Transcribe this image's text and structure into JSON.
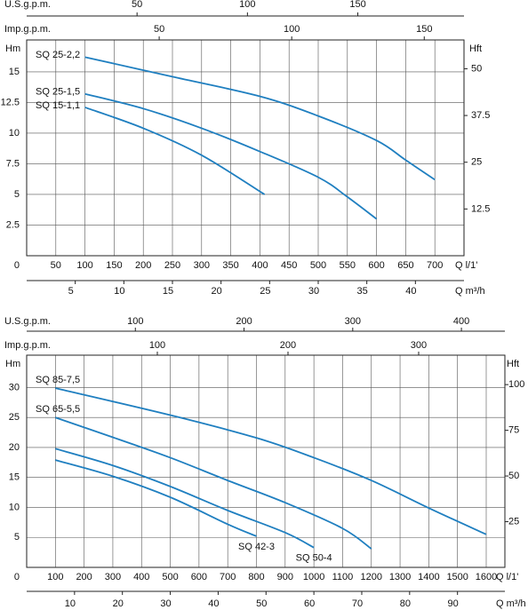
{
  "chart_data": [
    {
      "type": "line",
      "ylabel": "Hm",
      "y2label": "Hft",
      "xlabel": "Q l/1'",
      "xlim": [
        0,
        750
      ],
      "xticks": [
        50,
        100,
        150,
        200,
        250,
        300,
        350,
        400,
        450,
        500,
        550,
        600,
        650,
        700
      ],
      "ylim": [
        0,
        17.6
      ],
      "yticks": [
        0,
        2.5,
        5,
        7.5,
        10,
        12.5,
        15
      ],
      "y2lim": [
        0,
        57.7
      ],
      "y2ticks": [
        12.5,
        25,
        37.5,
        50
      ],
      "grid": true,
      "top_axes": [
        {
          "label": "U.S.g.p.m.",
          "xlim": [
            0,
            198.1
          ],
          "xticks": [
            50,
            100,
            150
          ]
        },
        {
          "label": "Imp.g.p.m.",
          "xlim": [
            0,
            165
          ],
          "xticks": [
            50,
            100,
            150
          ]
        }
      ],
      "bottom_axis2": {
        "label": "Q m³/h",
        "xlim": [
          0,
          45
        ],
        "xticks": [
          5,
          10,
          15,
          20,
          25,
          30,
          35,
          40
        ]
      },
      "series": [
        {
          "name": "SQ 25-2,2",
          "color": "#1f7fc0",
          "x": [
            100,
            250,
            400,
            500,
            600,
            650,
            700
          ],
          "values": [
            16.2,
            14.6,
            13.0,
            11.4,
            9.4,
            7.8,
            6.2
          ]
        },
        {
          "name": "SQ 25-1,5",
          "color": "#1f7fc0",
          "x": [
            100,
            200,
            300,
            400,
            500,
            550,
            600
          ],
          "values": [
            13.2,
            12.0,
            10.4,
            8.5,
            6.4,
            4.8,
            3.0
          ]
        },
        {
          "name": "SQ 15-1,1",
          "color": "#1f7fc0",
          "x": [
            100,
            200,
            300,
            408
          ],
          "values": [
            12.1,
            10.4,
            8.2,
            5.0
          ]
        }
      ]
    },
    {
      "type": "line",
      "ylabel": "Hm",
      "y2label": "Hft",
      "xlabel": "Q l/1'",
      "xlim": [
        0,
        1665
      ],
      "xticks": [
        100,
        200,
        300,
        400,
        500,
        600,
        700,
        800,
        900,
        1000,
        1100,
        1200,
        1300,
        1400,
        1500,
        1600
      ],
      "ylim": [
        0,
        35.4
      ],
      "yticks": [
        0,
        5,
        10,
        15,
        20,
        25,
        30
      ],
      "y2lim": [
        0,
        116.1
      ],
      "y2ticks": [
        25,
        50,
        75,
        100
      ],
      "grid": true,
      "top_axes": [
        {
          "label": "U.S.g.p.m.",
          "xlim": [
            0,
            440
          ],
          "xticks": [
            100,
            200,
            300,
            400
          ]
        },
        {
          "label": "Imp.g.p.m.",
          "xlim": [
            0,
            366
          ],
          "xticks": [
            100,
            200,
            300
          ]
        }
      ],
      "bottom_axis2": {
        "label": "Q m³/h",
        "xlim": [
          0,
          99.9
        ],
        "xticks": [
          10,
          20,
          30,
          40,
          50,
          60,
          70,
          80,
          90
        ]
      },
      "series": [
        {
          "name": "SQ 85-7,5",
          "color": "#1f7fc0",
          "x": [
            100,
            500,
            800,
            1000,
            1200,
            1400,
            1600
          ],
          "values": [
            29.9,
            25.4,
            21.6,
            18.3,
            14.5,
            9.9,
            5.5
          ]
        },
        {
          "name": "SQ 65-5,5",
          "color": "#1f7fc0",
          "x": [
            100,
            300,
            500,
            700,
            900,
            1100,
            1200
          ],
          "values": [
            25.0,
            21.7,
            18.3,
            14.5,
            10.8,
            6.5,
            3.1
          ]
        },
        {
          "name": "SQ 50-4",
          "color": "#1f7fc0",
          "x": [
            100,
            300,
            500,
            700,
            900,
            1000
          ],
          "values": [
            19.8,
            17.0,
            13.5,
            9.5,
            5.8,
            3.3
          ]
        },
        {
          "name": "SQ 42-3",
          "color": "#1f7fc0",
          "x": [
            100,
            300,
            500,
            700,
            800
          ],
          "values": [
            17.9,
            15.2,
            11.7,
            7.2,
            5.2
          ]
        }
      ]
    }
  ]
}
